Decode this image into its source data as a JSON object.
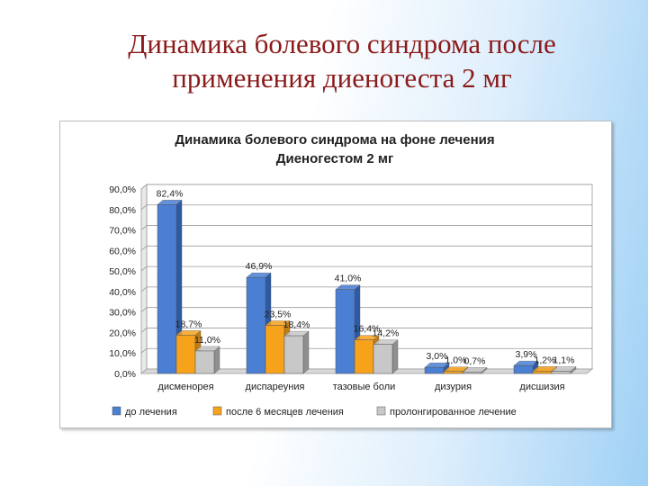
{
  "slide": {
    "title_line1": "Динамика  болевого  синдрома после",
    "title_line2": "применения  диеногеста 2 мг"
  },
  "colors": {
    "title": "#8b1a1a",
    "series": [
      "#4a7fd4",
      "#f7a21b",
      "#c8c8c8"
    ],
    "series_dark": [
      "#2d5aa6",
      "#c47d0f",
      "#8f8f8f"
    ]
  },
  "chart_data": {
    "type": "bar",
    "title_line1": "Динамика болевого синдрома на фоне лечения",
    "title_line2": "Диеногестом 2 мг",
    "categories": [
      "дисменорея",
      "диспареуния",
      "тазовые боли",
      "дизурия",
      "дисшизия"
    ],
    "series": [
      {
        "name": "до лечения",
        "values": [
          82.4,
          46.9,
          41.0,
          3.0,
          3.9
        ],
        "labels": [
          "82,4%",
          "46,9%",
          "41,0%",
          "3,0%",
          "3,9%"
        ]
      },
      {
        "name": "после 6 месяцев лечения",
        "values": [
          18.7,
          23.5,
          16.4,
          1.0,
          1.2
        ],
        "labels": [
          "18,7%",
          "23,5%",
          "16,4%",
          "1,0%",
          "1,2%"
        ]
      },
      {
        "name": "пролонгированное лечение",
        "values": [
          11.0,
          18.4,
          14.2,
          0.7,
          1.1
        ],
        "labels": [
          "11,0%",
          "18,4%",
          "14,2%",
          "0,7%",
          "1,1%"
        ]
      }
    ],
    "y_ticks": [
      "0,0%",
      "10,0%",
      "20,0%",
      "30,0%",
      "40,0%",
      "50,0%",
      "60,0%",
      "70,0%",
      "80,0%",
      "90,0%"
    ],
    "ylim": [
      0,
      90
    ],
    "grid": true,
    "legend_position": "bottom"
  }
}
